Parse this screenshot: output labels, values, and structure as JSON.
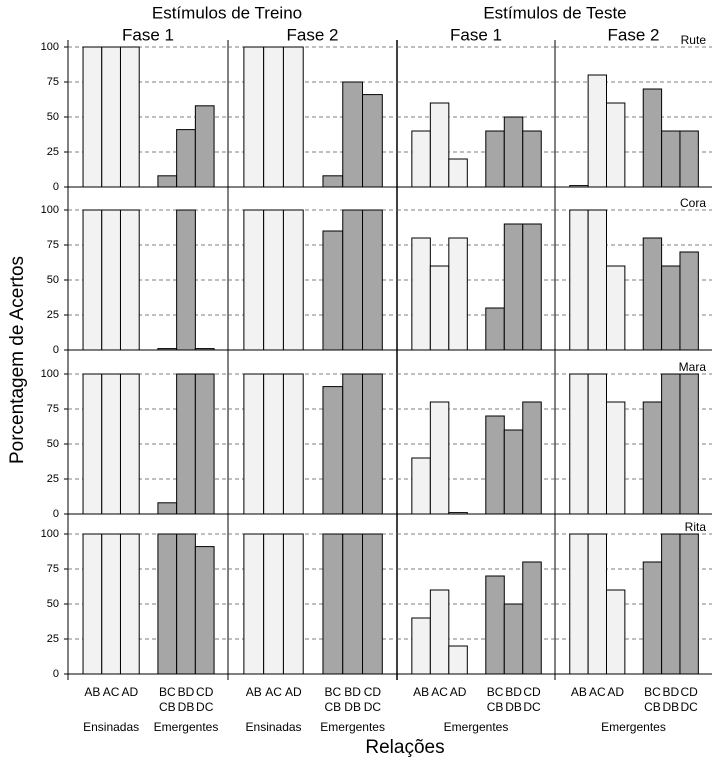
{
  "header": {
    "left": "Estímulos de Treino",
    "right": "Estímulos de Teste",
    "y_label": "Porcentagem de Acertos",
    "x_label": "Relações"
  },
  "columns": [
    {
      "phase": "Fase 1",
      "categories": [
        "AB",
        "AC",
        "AD",
        "BC",
        "BD",
        "CD"
      ],
      "categories_2": [
        null,
        null,
        null,
        "CB",
        "DB",
        "DC"
      ],
      "groups": [
        "Ensinadas",
        "Emergentes"
      ]
    },
    {
      "phase": "Fase 2",
      "categories": [
        "AB",
        "AC",
        "AD",
        "BC",
        "BD",
        "CD"
      ],
      "categories_2": [
        null,
        null,
        null,
        "CB",
        "DB",
        "DC"
      ],
      "groups": [
        "Ensinadas",
        "Emergentes"
      ]
    },
    {
      "phase": "Fase 1",
      "categories": [
        "AB",
        "AC",
        "AD",
        "BC",
        "BD",
        "CD"
      ],
      "categories_2": [
        null,
        null,
        null,
        "CB",
        "DB",
        "DC"
      ],
      "groups": [
        "Emergentes"
      ]
    },
    {
      "phase": "Fase 2",
      "categories": [
        "AB",
        "AC",
        "AD",
        "BC",
        "BD",
        "CD"
      ],
      "categories_2": [
        null,
        null,
        null,
        "CB",
        "DB",
        "DC"
      ],
      "groups": [
        "Emergentes"
      ]
    }
  ],
  "rows": [
    "Rute",
    "Cora",
    "Mara",
    "Rita"
  ],
  "chart_data": [
    {
      "type": "bar",
      "values": [
        100,
        100,
        100,
        8,
        41,
        58
      ],
      "colors": [
        "#f2f2f2",
        "#f2f2f2",
        "#f2f2f2",
        "#a6a6a6",
        "#a6a6a6",
        "#a6a6a6"
      ],
      "ylim": [
        0,
        100
      ],
      "yticks": [
        0,
        25,
        50,
        75,
        100
      ],
      "grid": true
    },
    {
      "type": "bar",
      "values": [
        100,
        100,
        100,
        8,
        75,
        66
      ],
      "colors": [
        "#f2f2f2",
        "#f2f2f2",
        "#f2f2f2",
        "#a6a6a6",
        "#a6a6a6",
        "#a6a6a6"
      ],
      "ylim": [
        0,
        100
      ],
      "yticks": [
        0,
        25,
        50,
        75,
        100
      ],
      "grid": true
    },
    {
      "type": "bar",
      "values": [
        40,
        60,
        20,
        40,
        50,
        40
      ],
      "colors": [
        "#f2f2f2",
        "#f2f2f2",
        "#f2f2f2",
        "#a6a6a6",
        "#a6a6a6",
        "#a6a6a6"
      ],
      "ylim": [
        0,
        100
      ],
      "yticks": [
        0,
        25,
        50,
        75,
        100
      ],
      "grid": true
    },
    {
      "type": "bar",
      "values": [
        1,
        80,
        60,
        70,
        40,
        40
      ],
      "colors": [
        "#f2f2f2",
        "#f2f2f2",
        "#f2f2f2",
        "#a6a6a6",
        "#a6a6a6",
        "#a6a6a6"
      ],
      "ylim": [
        0,
        100
      ],
      "yticks": [
        0,
        25,
        50,
        75,
        100
      ],
      "grid": true
    },
    {
      "type": "bar",
      "values": [
        100,
        100,
        100,
        1,
        100,
        1
      ],
      "colors": [
        "#f2f2f2",
        "#f2f2f2",
        "#f2f2f2",
        "#a6a6a6",
        "#a6a6a6",
        "#a6a6a6"
      ],
      "ylim": [
        0,
        100
      ],
      "yticks": [
        0,
        25,
        50,
        75,
        100
      ],
      "grid": true
    },
    {
      "type": "bar",
      "values": [
        100,
        100,
        100,
        85,
        100,
        100
      ],
      "colors": [
        "#f2f2f2",
        "#f2f2f2",
        "#f2f2f2",
        "#a6a6a6",
        "#a6a6a6",
        "#a6a6a6"
      ],
      "ylim": [
        0,
        100
      ],
      "yticks": [
        0,
        25,
        50,
        75,
        100
      ],
      "grid": true
    },
    {
      "type": "bar",
      "values": [
        80,
        60,
        80,
        30,
        90,
        90
      ],
      "colors": [
        "#f2f2f2",
        "#f2f2f2",
        "#f2f2f2",
        "#a6a6a6",
        "#a6a6a6",
        "#a6a6a6"
      ],
      "ylim": [
        0,
        100
      ],
      "yticks": [
        0,
        25,
        50,
        75,
        100
      ],
      "grid": true
    },
    {
      "type": "bar",
      "values": [
        100,
        100,
        60,
        80,
        60,
        70
      ],
      "colors": [
        "#f2f2f2",
        "#f2f2f2",
        "#f2f2f2",
        "#a6a6a6",
        "#a6a6a6",
        "#a6a6a6"
      ],
      "ylim": [
        0,
        100
      ],
      "yticks": [
        0,
        25,
        50,
        75,
        100
      ],
      "grid": true
    },
    {
      "type": "bar",
      "values": [
        100,
        100,
        100,
        8,
        100,
        100
      ],
      "colors": [
        "#f2f2f2",
        "#f2f2f2",
        "#f2f2f2",
        "#a6a6a6",
        "#a6a6a6",
        "#a6a6a6"
      ],
      "ylim": [
        0,
        100
      ],
      "yticks": [
        0,
        25,
        50,
        75,
        100
      ],
      "grid": true
    },
    {
      "type": "bar",
      "values": [
        100,
        100,
        100,
        91,
        100,
        100
      ],
      "colors": [
        "#f2f2f2",
        "#f2f2f2",
        "#f2f2f2",
        "#a6a6a6",
        "#a6a6a6",
        "#a6a6a6"
      ],
      "ylim": [
        0,
        100
      ],
      "yticks": [
        0,
        25,
        50,
        75,
        100
      ],
      "grid": true
    },
    {
      "type": "bar",
      "values": [
        40,
        80,
        1,
        70,
        60,
        80
      ],
      "colors": [
        "#f2f2f2",
        "#f2f2f2",
        "#f2f2f2",
        "#a6a6a6",
        "#a6a6a6",
        "#a6a6a6"
      ],
      "ylim": [
        0,
        100
      ],
      "yticks": [
        0,
        25,
        50,
        75,
        100
      ],
      "grid": true
    },
    {
      "type": "bar",
      "values": [
        100,
        100,
        80,
        80,
        100,
        100
      ],
      "colors": [
        "#f2f2f2",
        "#f2f2f2",
        "#f2f2f2",
        "#a6a6a6",
        "#a6a6a6",
        "#a6a6a6"
      ],
      "ylim": [
        0,
        100
      ],
      "yticks": [
        0,
        25,
        50,
        75,
        100
      ],
      "grid": true
    },
    {
      "type": "bar",
      "values": [
        100,
        100,
        100,
        100,
        100,
        91
      ],
      "colors": [
        "#f2f2f2",
        "#f2f2f2",
        "#f2f2f2",
        "#a6a6a6",
        "#a6a6a6",
        "#a6a6a6"
      ],
      "ylim": [
        0,
        100
      ],
      "yticks": [
        0,
        25,
        50,
        75,
        100
      ],
      "grid": true
    },
    {
      "type": "bar",
      "values": [
        100,
        100,
        100,
        100,
        100,
        100
      ],
      "colors": [
        "#f2f2f2",
        "#f2f2f2",
        "#f2f2f2",
        "#a6a6a6",
        "#a6a6a6",
        "#a6a6a6"
      ],
      "ylim": [
        0,
        100
      ],
      "yticks": [
        0,
        25,
        50,
        75,
        100
      ],
      "grid": true
    },
    {
      "type": "bar",
      "values": [
        40,
        60,
        20,
        70,
        50,
        80
      ],
      "colors": [
        "#f2f2f2",
        "#f2f2f2",
        "#f2f2f2",
        "#a6a6a6",
        "#a6a6a6",
        "#a6a6a6"
      ],
      "ylim": [
        0,
        100
      ],
      "yticks": [
        0,
        25,
        50,
        75,
        100
      ],
      "grid": true
    },
    {
      "type": "bar",
      "values": [
        100,
        100,
        60,
        80,
        100,
        100
      ],
      "colors": [
        "#f2f2f2",
        "#f2f2f2",
        "#f2f2f2",
        "#a6a6a6",
        "#a6a6a6",
        "#a6a6a6"
      ],
      "ylim": [
        0,
        100
      ],
      "yticks": [
        0,
        25,
        50,
        75,
        100
      ],
      "grid": true
    }
  ]
}
